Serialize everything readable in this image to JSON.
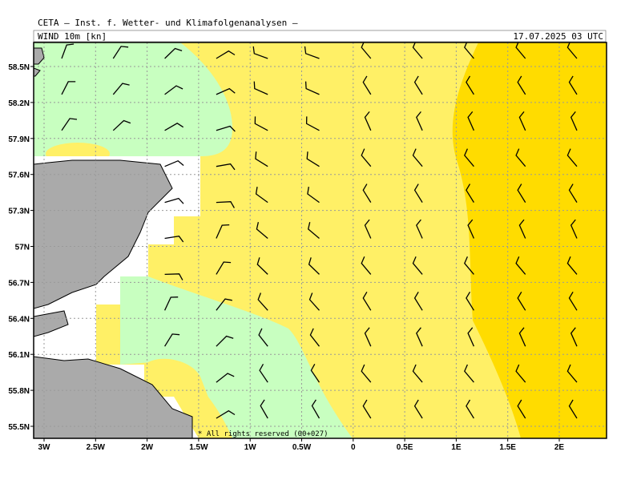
{
  "header": {
    "title": "CETA — Inst. f. Wetter- und Klimafolgenanalysen —",
    "variable": "WIND 10m [kn]",
    "time": "17.07.2025 03 UTC"
  },
  "map": {
    "lat_labels": [
      "58.5N",
      "58.2N",
      "57.9N",
      "57.6N",
      "57.3N",
      "57N",
      "56.7N",
      "56.4N",
      "56.1N",
      "55.8N",
      "55.5N"
    ],
    "lon_labels": [
      "3W",
      "2.5W",
      "2W",
      "1.5W",
      "1W",
      "0.5W",
      "0",
      "0.5E",
      "1E",
      "1.5E",
      "2E"
    ]
  },
  "footer": "* All rights reserved (00+027)"
}
